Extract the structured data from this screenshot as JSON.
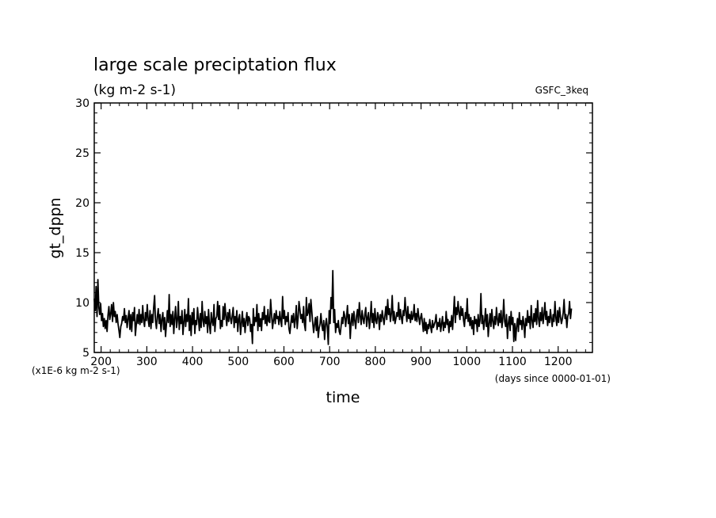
{
  "chart_data": {
    "type": "line",
    "title": "large scale preciptation flux",
    "subtitle": "(kg m-2 s-1)",
    "run_label": "GSFC_3keq",
    "xlabel": "time",
    "xunits": "(days since 0000-01-01)",
    "ylabel": "gt_dppn",
    "yunits": "(x1E-6 kg m-2 s-1)",
    "xlim": [
      185,
      1275
    ],
    "ylim": [
      5,
      30
    ],
    "x_ticks": [
      200,
      300,
      400,
      500,
      600,
      700,
      800,
      900,
      1000,
      1100,
      1200
    ],
    "y_ticks": [
      5,
      10,
      15,
      20,
      25,
      30
    ],
    "grid": false,
    "series": [
      {
        "x_start": 185,
        "x_step": 2,
        "values": [
          10.4,
          9.2,
          11.6,
          8.6,
          12.3,
          9.5,
          8.8,
          9.9,
          8.2,
          8.9,
          7.6,
          8.4,
          7.4,
          8.2,
          7.1,
          8.7,
          9.6,
          8.3,
          8.9,
          9.8,
          8.1,
          10.0,
          8.6,
          9.1,
          8.0,
          8.8,
          7.9,
          7.2,
          6.5,
          7.6,
          7.9,
          8.6,
          8.2,
          9.4,
          8.0,
          8.7,
          7.5,
          8.4,
          9.2,
          7.3,
          8.8,
          7.1,
          9.0,
          8.2,
          9.5,
          6.7,
          7.8,
          8.8,
          7.9,
          9.3,
          7.8,
          8.8,
          8.0,
          9.7,
          8.2,
          7.6,
          9.0,
          8.2,
          9.8,
          8.3,
          7.6,
          9.2,
          7.4,
          8.8,
          8.0,
          9.5,
          10.7,
          8.2,
          7.4,
          8.6,
          9.4,
          7.9,
          8.8,
          7.1,
          8.3,
          9.0,
          7.3,
          8.5,
          6.6,
          7.9,
          9.2,
          8.0,
          10.8,
          7.6,
          8.8,
          7.8,
          9.1,
          6.9,
          8.5,
          9.6,
          7.5,
          8.2,
          10.1,
          7.3,
          8.6,
          7.9,
          9.2,
          6.8,
          8.0,
          9.3,
          7.6,
          8.8,
          8.1,
          10.4,
          7.2,
          8.7,
          6.7,
          9.0,
          7.8,
          9.4,
          6.9,
          8.2,
          7.8,
          9.5,
          8.4,
          7.2,
          8.9,
          7.5,
          10.1,
          8.2,
          7.6,
          9.1,
          7.9,
          8.6,
          7.0,
          9.3,
          7.8,
          6.9,
          9.0,
          8.1,
          7.7,
          9.8,
          7.1,
          8.4,
          8.6,
          10.1,
          8.3,
          9.7,
          7.4,
          8.2,
          7.6,
          9.6,
          8.3,
          9.9,
          8.6,
          7.7,
          9.0,
          8.1,
          9.3,
          8.4,
          7.9,
          8.7,
          9.5,
          7.5,
          8.6,
          8.0,
          9.2,
          7.1,
          8.4,
          8.8,
          6.8,
          7.9,
          9.1,
          7.6,
          8.4,
          7.0,
          8.2,
          9.0,
          7.7,
          8.6,
          8.4,
          7.1,
          7.8,
          5.9,
          9.4,
          7.7,
          8.5,
          8.1,
          9.8,
          7.2,
          8.9,
          7.6,
          8.4,
          7.2,
          9.0,
          8.3,
          9.6,
          7.9,
          8.7,
          7.7,
          9.3,
          8.1,
          8.0,
          10.3,
          8.8,
          7.4,
          8.2,
          8.9,
          7.9,
          9.2,
          8.4,
          8.6,
          7.8,
          9.1,
          8.2,
          7.6,
          10.6,
          8.4,
          9.2,
          7.8,
          8.6,
          8.1,
          9.0,
          7.4,
          6.9,
          7.8,
          8.7,
          8.0,
          8.9,
          7.5,
          8.3,
          9.7,
          7.4,
          8.5,
          10.1,
          9.3,
          8.4,
          8.8,
          8.0,
          9.6,
          7.8,
          7.2,
          10.5,
          8.7,
          9.0,
          9.9,
          8.1,
          10.3,
          9.1,
          8.0,
          7.0,
          7.8,
          8.5,
          7.2,
          8.6,
          6.5,
          7.4,
          7.9,
          8.9,
          7.7,
          7.2,
          8.2,
          6.3,
          7.8,
          8.4,
          7.5,
          5.8,
          9.2,
          7.9,
          10.5,
          9.4,
          13.2,
          8.0,
          9.3,
          7.0,
          7.9,
          7.5,
          8.2,
          7.1,
          6.8,
          7.6,
          8.5,
          7.9,
          9.1,
          8.7,
          7.6,
          8.5,
          9.7,
          7.9,
          8.8,
          6.4,
          8.0,
          8.9,
          7.7,
          9.1,
          8.2,
          7.4,
          8.7,
          9.3,
          8.0,
          10.0,
          8.6,
          7.8,
          9.2,
          8.4,
          7.9,
          8.8,
          9.5,
          7.6,
          8.5,
          9.0,
          7.4,
          8.3,
          10.1,
          8.0,
          8.9,
          7.5,
          9.4,
          8.2,
          7.9,
          9.0,
          8.6,
          7.3,
          8.8,
          8.1,
          9.2,
          8.5,
          7.8,
          8.7,
          9.6,
          8.3,
          10.3,
          8.8,
          9.4,
          8.1,
          8.9,
          10.7,
          8.2,
          9.1,
          7.9,
          8.4,
          9.0,
          8.6,
          10.0,
          8.3,
          9.3,
          8.5,
          7.9,
          9.2,
          8.7,
          10.5,
          9.0,
          8.1,
          9.6,
          8.4,
          8.8,
          8.0,
          9.1,
          8.3,
          8.6,
          9.8,
          8.2,
          8.9,
          8.1,
          9.4,
          8.6,
          7.8,
          8.5,
          8.9,
          8.0,
          7.1,
          8.4,
          7.2,
          8.0,
          6.9,
          7.8,
          7.4,
          8.3,
          7.6,
          7.0,
          8.2,
          7.5,
          7.8,
          8.1,
          8.8,
          7.3,
          8.0,
          7.6,
          8.4,
          7.1,
          7.9,
          8.6,
          7.2,
          8.0,
          7.5,
          9.1,
          7.8,
          8.3,
          7.0,
          8.1,
          7.6,
          8.7,
          7.3,
          8.9,
          10.6,
          8.0,
          9.5,
          8.8,
          10.1,
          9.0,
          8.3,
          9.6,
          8.7,
          9.4,
          8.2,
          7.6,
          9.0,
          8.4,
          10.4,
          8.1,
          8.8,
          7.7,
          8.5,
          7.4,
          8.2,
          6.8,
          8.6,
          7.9,
          8.3,
          7.1,
          8.8,
          7.6,
          8.2,
          10.9,
          7.9,
          8.7,
          7.3,
          8.1,
          9.4,
          7.6,
          8.8,
          6.6,
          7.9,
          8.9,
          7.6,
          9.3,
          8.1,
          7.4,
          8.6,
          7.8,
          9.5,
          8.3,
          7.7,
          8.9,
          8.0,
          9.2,
          7.5,
          8.4,
          10.3,
          8.1,
          7.6,
          8.8,
          6.4,
          7.9,
          8.6,
          7.2,
          9.1,
          7.8,
          8.5,
          6.1,
          7.9,
          6.2,
          7.6,
          8.4,
          7.1,
          9.0,
          7.8,
          8.2,
          7.3,
          8.6,
          7.9,
          6.5,
          8.4,
          7.7,
          9.2,
          8.0,
          8.6,
          7.4,
          9.7,
          8.2,
          7.5,
          8.9,
          8.1,
          9.4,
          7.8,
          10.2,
          8.4,
          7.6,
          9.0,
          8.2,
          9.5,
          7.9,
          8.7,
          10.0,
          8.3,
          9.1,
          7.7,
          8.6,
          8.0,
          9.3,
          8.4,
          7.6,
          8.8,
          8.1,
          10.1,
          8.5,
          7.7,
          9.2,
          8.0,
          9.5,
          8.6,
          7.9,
          8.3,
          9.0,
          10.3,
          8.4,
          8.8,
          7.5,
          8.6,
          8.9,
          10.1,
          8.4,
          9.4
        ]
      }
    ]
  }
}
